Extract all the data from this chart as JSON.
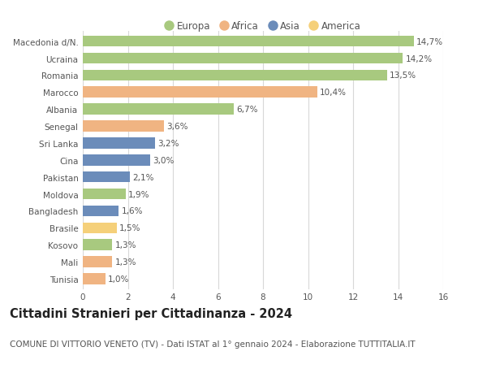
{
  "categories": [
    "Macedonia d/N.",
    "Ucraina",
    "Romania",
    "Marocco",
    "Albania",
    "Senegal",
    "Sri Lanka",
    "Cina",
    "Pakistan",
    "Moldova",
    "Bangladesh",
    "Brasile",
    "Kosovo",
    "Mali",
    "Tunisia"
  ],
  "values": [
    14.7,
    14.2,
    13.5,
    10.4,
    6.7,
    3.6,
    3.2,
    3.0,
    2.1,
    1.9,
    1.6,
    1.5,
    1.3,
    1.3,
    1.0
  ],
  "labels": [
    "14,7%",
    "14,2%",
    "13,5%",
    "10,4%",
    "6,7%",
    "3,6%",
    "3,2%",
    "3,0%",
    "2,1%",
    "1,9%",
    "1,6%",
    "1,5%",
    "1,3%",
    "1,3%",
    "1,0%"
  ],
  "continents": [
    "Europa",
    "Europa",
    "Europa",
    "Africa",
    "Europa",
    "Africa",
    "Asia",
    "Asia",
    "Asia",
    "Europa",
    "Asia",
    "America",
    "Europa",
    "Africa",
    "Africa"
  ],
  "continent_colors": {
    "Europa": "#a8c97f",
    "Africa": "#f0b482",
    "Asia": "#6b8cba",
    "America": "#f5d07a"
  },
  "legend_order": [
    "Europa",
    "Africa",
    "Asia",
    "America"
  ],
  "title": "Cittadini Stranieri per Cittadinanza - 2024",
  "subtitle": "COMUNE DI VITTORIO VENETO (TV) - Dati ISTAT al 1° gennaio 2024 - Elaborazione TUTTITALIA.IT",
  "xlim": [
    0,
    16
  ],
  "xticks": [
    0,
    2,
    4,
    6,
    8,
    10,
    12,
    14,
    16
  ],
  "background_color": "#ffffff",
  "grid_color": "#d8d8d8",
  "bar_height": 0.65,
  "title_fontsize": 10.5,
  "subtitle_fontsize": 7.5,
  "label_fontsize": 7.5,
  "tick_fontsize": 7.5,
  "legend_fontsize": 8.5
}
